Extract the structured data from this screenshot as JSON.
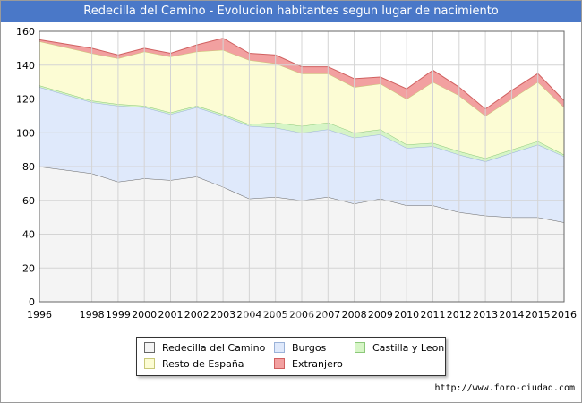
{
  "chart_data": {
    "type": "area",
    "stacked": true,
    "title": "Redecilla del Camino - Evolucion habitantes segun lugar de nacimiento",
    "x": [
      "1996",
      "1998",
      "1999",
      "2000",
      "2001",
      "2002",
      "2003",
      "2004",
      "2005",
      "2006",
      "2007",
      "2008",
      "2009",
      "2010",
      "2011",
      "2012",
      "2013",
      "2014",
      "2015",
      "2016"
    ],
    "ylim": [
      0,
      160
    ],
    "yticks": [
      0,
      20,
      40,
      60,
      80,
      100,
      120,
      140,
      160
    ],
    "grid": true,
    "legend_position": "bottom",
    "series": [
      {
        "name": "Redecilla del Camino",
        "color": "#f4f4f4",
        "line": "#666666",
        "values": [
          80,
          76,
          71,
          73,
          72,
          74,
          68,
          61,
          62,
          60,
          62,
          58,
          61,
          57,
          57,
          53,
          51,
          50,
          50,
          47
        ]
      },
      {
        "name": "Burgos",
        "color": "#dfe9fb",
        "line": "#9ab2d8",
        "values": [
          47,
          42,
          45,
          42,
          39,
          41,
          42,
          43,
          41,
          40,
          40,
          39,
          38,
          34,
          35,
          34,
          32,
          38,
          43,
          39
        ]
      },
      {
        "name": "Castilla y Leon",
        "color": "#d6f5c6",
        "line": "#8cc87a",
        "values": [
          1,
          1,
          1,
          1,
          1,
          1,
          1,
          1,
          3,
          4,
          4,
          3,
          3,
          2,
          2,
          2,
          2,
          2,
          2,
          1
        ]
      },
      {
        "name": "Resto de España",
        "color": "#fcfcd4",
        "line": "#c8c878",
        "values": [
          26,
          28,
          27,
          32,
          33,
          32,
          38,
          38,
          35,
          31,
          29,
          27,
          27,
          27,
          36,
          33,
          25,
          30,
          35,
          28
        ]
      },
      {
        "name": "Extranjero",
        "color": "#f2a0a0",
        "line": "#d06060",
        "values": [
          1,
          3,
          2,
          2,
          2,
          4,
          7,
          4,
          5,
          4,
          4,
          5,
          4,
          6,
          7,
          5,
          4,
          5,
          5,
          4
        ]
      }
    ]
  },
  "source_url": "http://www.foro-ciudad.com",
  "watermark": "FORO-CIUDAD.COM"
}
